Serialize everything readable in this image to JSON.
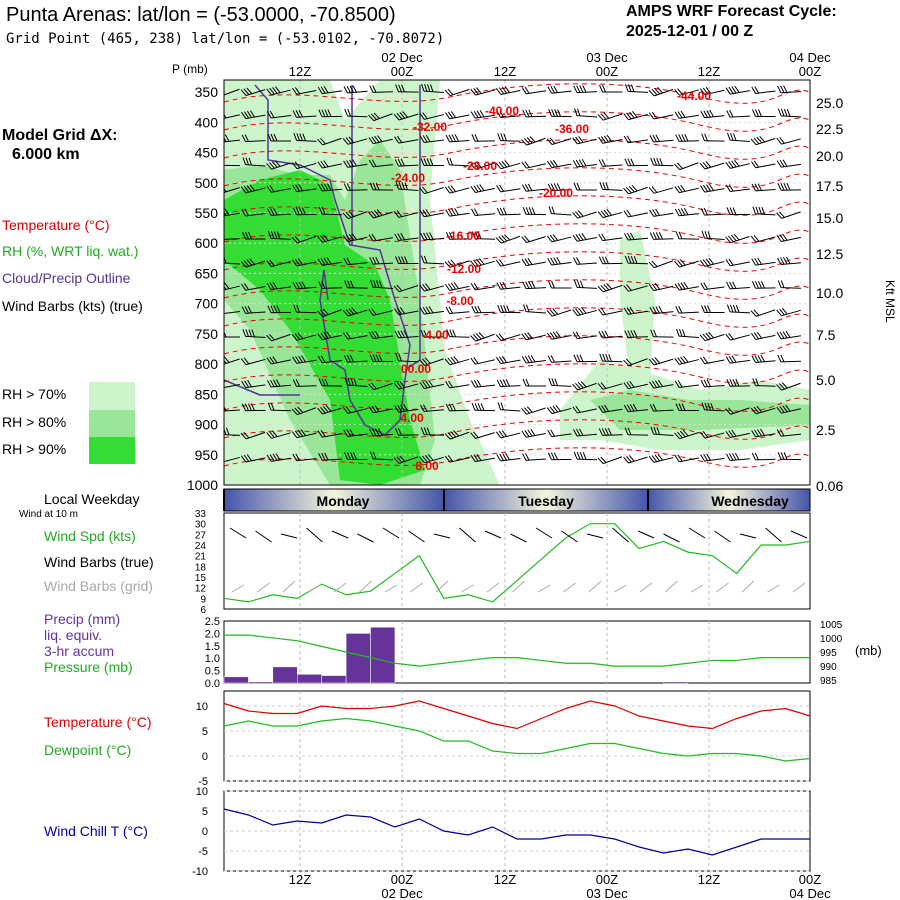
{
  "header": {
    "title": "Punta Arenas: lat/lon = (-53.0000, -70.8500)",
    "subtitle": "Grid Point (465, 238) lat/lon = (-53.0102, -70.8072)",
    "cycle_line1": "AMPS WRF Forecast Cycle:",
    "cycle_line2": "2025-12-01 / 00 Z"
  },
  "legend": {
    "model_grid": "Model Grid ΔX:",
    "grid_size": "6.000 km",
    "temperature": "Temperature (°C)",
    "rh": "RH (%, WRT liq. wat.)",
    "cloud": "Cloud/Precip Outline",
    "wind": "Wind Barbs (kts) (true)",
    "rh70": "RH > 70%",
    "rh80": "RH > 80%",
    "rh90": "RH > 90%",
    "colors": {
      "rh70": "#ccf5cc",
      "rh80": "#99e699",
      "rh90": "#33dd33",
      "temp": "#ee0000",
      "cloud": "#553399"
    }
  },
  "time_axis": {
    "top_dates": [
      "02 Dec",
      "03 Dec",
      "04 Dec"
    ],
    "hour_labels": [
      "12Z",
      "00Z",
      "12Z",
      "00Z",
      "12Z",
      "00Z"
    ],
    "bottom_dates": [
      "02 Dec",
      "03 Dec",
      "04 Dec"
    ],
    "weekday_title": "Local Weekday",
    "weekdays": [
      "Monday",
      "Tuesday",
      "Wednesday"
    ]
  },
  "chart_data": [
    {
      "type": "heatmap",
      "name": "vertical cross-section",
      "ylabel_left": "P (mb)",
      "ylabel_right": "Kft MSL",
      "pressure_ticks": [
        350,
        400,
        450,
        500,
        550,
        600,
        650,
        700,
        750,
        800,
        850,
        900,
        950,
        1000
      ],
      "height_ticks": [
        "25.0",
        "22.5",
        "20.0",
        "17.5",
        "15.0",
        "12.5",
        "10.0",
        "7.5",
        "5.0",
        "2.5",
        "0.06"
      ],
      "temperature_contour_labels": [
        "-44.00",
        "-40.00",
        "-36.00",
        "-32.00",
        "-28.00",
        "-24.00",
        "-20.00",
        "-16.00",
        "-12.00",
        "-8.00",
        "-4.00",
        "00.00",
        "4.00",
        "8.00"
      ]
    },
    {
      "type": "line",
      "name": "surface wind",
      "note": "Wind at 10 m",
      "labels": [
        "Wind Spd (kts)",
        "Wind Barbs (true)",
        "Wind Barbs (grid)"
      ],
      "y_ticks": [
        33,
        30,
        27,
        24,
        21,
        18,
        15,
        12,
        9,
        6
      ],
      "ylim": [
        6,
        33
      ],
      "x_hours": [
        0,
        3,
        6,
        9,
        12,
        15,
        18,
        21,
        24,
        27,
        30,
        33,
        36,
        39,
        42,
        45,
        48,
        51,
        54,
        57,
        60,
        63,
        66,
        69,
        72
      ],
      "wind_speed": [
        9,
        8,
        10,
        9,
        13,
        10,
        11,
        16,
        21,
        9,
        10,
        8,
        14,
        20,
        26,
        30,
        30,
        23,
        25,
        22,
        21,
        16,
        24,
        24,
        25
      ],
      "color": "#22bb22"
    },
    {
      "type": "bar",
      "name": "precipitation and pressure",
      "labels": [
        "Precip (mm)",
        "liq. equiv.",
        "3-hr accum",
        "Pressure (mb)"
      ],
      "precip_ticks": [
        "2.5",
        "2.0",
        "1.5",
        "1.0",
        "0.5",
        "0.0"
      ],
      "pressure_ticks": [
        1005,
        1000,
        995,
        990,
        985
      ],
      "pressure_unit": "(mb)",
      "precip_ylim": [
        0,
        2.5
      ],
      "pressure_ylim": [
        984,
        1006
      ],
      "precip_hours": [
        0,
        3,
        6,
        9,
        12,
        15,
        18,
        21,
        54
      ],
      "precip_mm": [
        0.25,
        0.05,
        0.65,
        0.35,
        0.3,
        2.0,
        2.25,
        0.0,
        0.05
      ],
      "x_hours": [
        0,
        3,
        6,
        9,
        12,
        15,
        18,
        21,
        24,
        27,
        30,
        33,
        36,
        39,
        42,
        45,
        48,
        51,
        54,
        57,
        60,
        63,
        66,
        69,
        72
      ],
      "pressure_mb": [
        1001,
        1001,
        1000,
        999,
        997,
        995,
        993,
        991,
        990,
        991,
        992,
        993,
        993,
        992,
        991,
        991,
        990,
        990,
        990,
        991,
        992,
        992,
        993,
        993,
        993
      ],
      "precip_color": "#663399",
      "pressure_color": "#22bb22"
    },
    {
      "type": "line",
      "name": "temperature and dewpoint",
      "labels": [
        "Temperature (°C)",
        "Dewpoint (°C)"
      ],
      "y_ticks": [
        10,
        5,
        0,
        -5
      ],
      "ylim": [
        -5,
        13
      ],
      "x_hours": [
        0,
        3,
        6,
        9,
        12,
        15,
        18,
        21,
        24,
        27,
        30,
        33,
        36,
        39,
        42,
        45,
        48,
        51,
        54,
        57,
        60,
        63,
        66,
        69,
        72
      ],
      "temperature": [
        10.5,
        9,
        8.5,
        8.5,
        10,
        9.5,
        9.5,
        10,
        11,
        9.5,
        8,
        6.5,
        5.5,
        7.5,
        9.5,
        11,
        10,
        8,
        7,
        6,
        5.5,
        7.5,
        9,
        9.5,
        8
      ],
      "dewpoint": [
        6,
        7,
        6,
        6,
        7,
        7.5,
        7,
        6,
        5,
        3,
        3,
        1,
        0.5,
        0.5,
        1.5,
        2.5,
        2.5,
        1.5,
        0.5,
        0,
        0.5,
        0.5,
        0,
        -1,
        -0.5
      ],
      "colors": [
        "#dd0000",
        "#22bb22"
      ]
    },
    {
      "type": "line",
      "name": "wind chill",
      "labels": [
        "Wind Chill T (°C)"
      ],
      "y_ticks": [
        10,
        5,
        0,
        -5,
        -10
      ],
      "ylim": [
        -10,
        10
      ],
      "x_hours": [
        0,
        3,
        6,
        9,
        12,
        15,
        18,
        21,
        24,
        27,
        30,
        33,
        36,
        39,
        42,
        45,
        48,
        51,
        54,
        57,
        60,
        63,
        66,
        69,
        72
      ],
      "wind_chill": [
        5.5,
        4,
        1.5,
        2.5,
        2,
        4,
        3.5,
        1,
        3,
        0,
        -1,
        1,
        -2,
        -2,
        -1,
        -1,
        -2,
        -4,
        -5.5,
        -4.5,
        -6,
        -4,
        -2,
        -2,
        -2
      ],
      "color": "#000099"
    }
  ]
}
